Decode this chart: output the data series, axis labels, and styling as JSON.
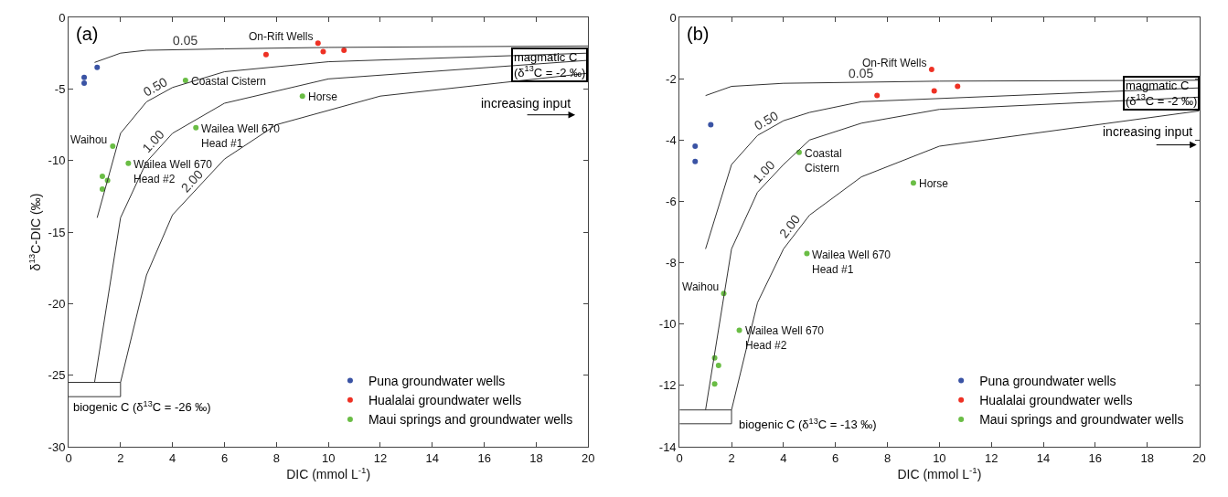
{
  "chart_data": [
    {
      "type": "scatter",
      "xlabel": "DIC (mmol L$^{-1}$)",
      "ylabel": "δ$^{13}$C-DIC (‰)",
      "xlim": [
        0,
        20
      ],
      "ylim": [
        -30,
        0
      ],
      "xticks": [
        0,
        2,
        4,
        6,
        8,
        10,
        12,
        14,
        16,
        18,
        20
      ],
      "yticks": [
        -30,
        -25,
        -20,
        -15,
        -10,
        -5,
        0
      ],
      "legend": "bottom right",
      "marker": "circle",
      "series": [
        {
          "name": "Puna groundwater wells",
          "color": "#3a53a4",
          "x": [
            0.6,
            0.6,
            1.1
          ],
          "values": [
            -4.2,
            -4.6,
            -3.5
          ]
        },
        {
          "name": "Hualalai groundwater wells",
          "color": "#ee3124",
          "x": [
            7.6,
            9.6,
            9.8,
            10.6
          ],
          "values": [
            -2.6,
            -1.8,
            -2.4,
            -2.3
          ]
        },
        {
          "name": "Maui springs and groundwater wells",
          "color": "#6abd45",
          "x": [
            4.5,
            9.0,
            4.9,
            1.7,
            2.3,
            1.3,
            1.5,
            1.3
          ],
          "values": [
            -4.4,
            -5.5,
            -7.7,
            -9.0,
            -10.2,
            -11.1,
            -11.4,
            -12.0
          ]
        },
        {
          "type": "line",
          "marker": "none",
          "name": "0.05",
          "color": "#333333",
          "x": [
            1,
            2,
            3,
            6,
            10,
            20
          ],
          "values": [
            -3.15,
            -2.5,
            -2.3,
            -2.2,
            -2.1,
            -2.0
          ]
        },
        {
          "type": "line",
          "marker": "none",
          "name": "0.50",
          "color": "#333333",
          "x": [
            1.1,
            2,
            3,
            4,
            6,
            10,
            20
          ],
          "values": [
            -14,
            -8.1,
            -5.9,
            -4.9,
            -3.8,
            -3.1,
            -2.5
          ]
        },
        {
          "type": "line",
          "marker": "none",
          "name": "1.00",
          "color": "#333333",
          "x": [
            1,
            2,
            3,
            4,
            6,
            10,
            20
          ],
          "values": [
            -25.5,
            -14,
            -10.1,
            -8.1,
            -6,
            -4.3,
            -3.0
          ]
        },
        {
          "type": "line",
          "marker": "none",
          "name": "2.00",
          "color": "#333333",
          "x": [
            2,
            3,
            4,
            6,
            8,
            12,
            20
          ],
          "values": [
            -25.5,
            -18,
            -13.8,
            -9.9,
            -7.5,
            -5.5,
            -3.9
          ]
        },
        {
          "type": "line",
          "marker": "none",
          "color": "#333333",
          "x": [
            0,
            2,
            2,
            0
          ],
          "values": [
            -25.5,
            -25.5,
            -26.5,
            -26.5
          ]
        }
      ],
      "annotations": [
        "(a)",
        "magmatic C\n(δ$^{13}$C = -2 ‰)",
        "increasing input",
        "biogenic C (δ$^{13}$C = -26 ‰)",
        {
          "text": "On-Rift Wells",
          "x": 9.6,
          "y": -1.8
        },
        {
          "text": "Coastal Cistern",
          "x": 4.5,
          "y": -4.4
        },
        {
          "text": "Horse",
          "x": 9.0,
          "y": -5.5
        },
        {
          "text": "Wailea Well 670\nHead #1",
          "x": 4.9,
          "y": -7.7
        },
        {
          "text": "Waihou",
          "x": 1.7,
          "y": -9.0
        },
        {
          "text": "Wailea Well 670\nHead #2",
          "x": 2.3,
          "y": -10.2
        }
      ]
    },
    {
      "type": "scatter",
      "xlabel": "DIC (mmol L$^{-1}$)",
      "xlim": [
        0,
        20
      ],
      "ylim": [
        -14,
        0
      ],
      "xticks": [
        0,
        2,
        4,
        6,
        8,
        10,
        12,
        14,
        16,
        18,
        20
      ],
      "yticks": [
        -14,
        -12,
        -10,
        -8,
        -6,
        -4,
        -2,
        0
      ],
      "legend": "bottom right",
      "marker": "circle",
      "series": [
        {
          "name": "Puna groundwater wells",
          "color": "#3a53a4",
          "x": [
            0.6,
            0.6,
            1.2
          ],
          "values": [
            -4.2,
            -4.7,
            -3.5
          ]
        },
        {
          "name": "Hualalai groundwater wells",
          "color": "#ee3124",
          "x": [
            7.6,
            9.7,
            9.8,
            10.7
          ],
          "values": [
            -2.55,
            -1.7,
            -2.4,
            -2.25
          ]
        },
        {
          "name": "Maui springs and groundwater wells",
          "color": "#6abd45",
          "x": [
            4.6,
            9.0,
            4.9,
            1.7,
            2.3,
            1.35,
            1.5,
            1.35
          ],
          "values": [
            -4.4,
            -5.4,
            -7.7,
            -9.0,
            -10.2,
            -11.1,
            -11.35,
            -11.95
          ]
        },
        {
          "type": "line",
          "marker": "none",
          "name": "0.05",
          "color": "#333333",
          "x": [
            1,
            2,
            4,
            10,
            20
          ],
          "values": [
            -2.55,
            -2.25,
            -2.15,
            -2.08,
            -2.05
          ]
        },
        {
          "type": "line",
          "marker": "none",
          "name": "0.50",
          "color": "#333333",
          "x": [
            1,
            2,
            3,
            4,
            5,
            7,
            20
          ],
          "values": [
            -7.55,
            -4.8,
            -3.85,
            -3.37,
            -3.1,
            -2.75,
            -2.3
          ]
        },
        {
          "type": "line",
          "marker": "none",
          "name": "1.00",
          "color": "#333333",
          "x": [
            1,
            2,
            3,
            4,
            5,
            7,
            10,
            20
          ],
          "values": [
            -12.8,
            -7.55,
            -5.7,
            -4.8,
            -4.0,
            -3.45,
            -3.0,
            -2.6
          ]
        },
        {
          "type": "line",
          "marker": "none",
          "name": "2.00",
          "color": "#333333",
          "x": [
            2,
            3,
            4,
            5,
            7,
            10,
            20
          ],
          "values": [
            -12.8,
            -9.3,
            -7.55,
            -6.45,
            -5.2,
            -4.2,
            -3.05
          ]
        },
        {
          "type": "line",
          "marker": "none",
          "color": "#333333",
          "x": [
            0,
            2,
            2,
            0
          ],
          "values": [
            -12.8,
            -12.8,
            -13.25,
            -13.25
          ]
        }
      ],
      "annotations": [
        "(b)",
        "magmatic C\n(δ$^{13}$C = -2 ‰)",
        "increasing input",
        "biogenic C (δ$^{13}$C = -13 ‰)",
        {
          "text": "On-Rift Wells",
          "x": 9.7,
          "y": -1.7
        },
        {
          "text": "Coastal\nCistern",
          "x": 4.6,
          "y": -4.4
        },
        {
          "text": "Horse",
          "x": 9.0,
          "y": -5.4
        },
        {
          "text": "Wailea Well 670\nHead #1",
          "x": 4.9,
          "y": -7.7
        },
        {
          "text": "Waihou",
          "x": 1.7,
          "y": -9.0
        },
        {
          "text": "Wailea Well 670\nHead #2",
          "x": 2.3,
          "y": -10.2
        }
      ]
    }
  ]
}
